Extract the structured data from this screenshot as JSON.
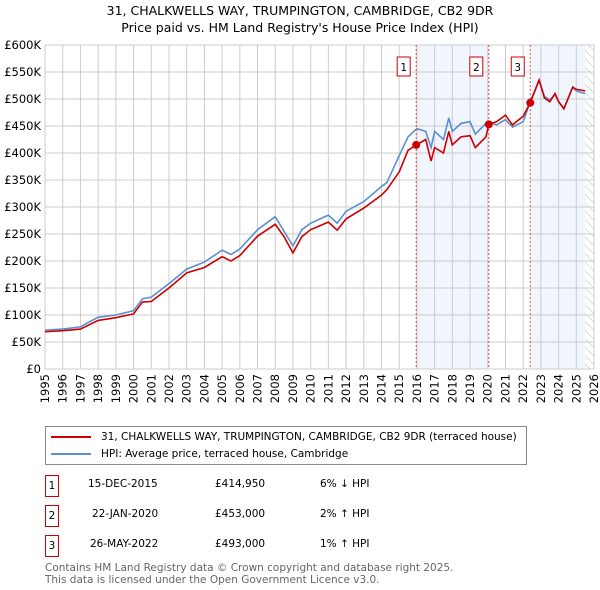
{
  "chart_data": {
    "type": "line",
    "title": "31, CHALKWELLS WAY, TRUMPINGTON, CAMBRIDGE, CB2 9DR",
    "subtitle": "Price paid vs. HM Land Registry's House Price Index (HPI)",
    "xlim": [
      1995,
      2026
    ],
    "ylim": [
      0,
      600000
    ],
    "x_ticks": [
      "1995",
      "1996",
      "1997",
      "1998",
      "1999",
      "2000",
      "2001",
      "2002",
      "2003",
      "2004",
      "2005",
      "2006",
      "2007",
      "2008",
      "2009",
      "2010",
      "2011",
      "2012",
      "2013",
      "2014",
      "2015",
      "2016",
      "2017",
      "2018",
      "2019",
      "2020",
      "2021",
      "2022",
      "2023",
      "2024",
      "2025",
      "2026"
    ],
    "y_ticks": [
      "£0",
      "£50K",
      "£100K",
      "£150K",
      "£200K",
      "£250K",
      "£300K",
      "£350K",
      "£400K",
      "£450K",
      "£500K",
      "£550K",
      "£600K"
    ],
    "grid": true,
    "series": [
      {
        "name": "31, CHALKWELLS WAY, TRUMPINGTON, CAMBRIDGE, CB2 9DR (terraced house)",
        "color": "#cc0000",
        "x": [
          1995,
          1996,
          1997,
          1998,
          1999,
          2000,
          2000.5,
          2001,
          2002,
          2003,
          2004,
          2005,
          2005.5,
          2006,
          2007,
          2008,
          2008.5,
          2009,
          2009.5,
          2010,
          2011,
          2011.5,
          2012,
          2013,
          2014,
          2014.3,
          2015,
          2015.5,
          2015.96,
          2016.5,
          2016.8,
          2017,
          2017.5,
          2017.8,
          2018,
          2018.5,
          2019,
          2019.3,
          2019.9,
          2020.06,
          2020.5,
          2021,
          2021.4,
          2022,
          2022.4,
          2022.6,
          2022.9,
          2023.2,
          2023.5,
          2023.8,
          2024,
          2024.3,
          2024.8,
          2025,
          2025.5
        ],
        "y": [
          69000,
          71000,
          74000,
          90000,
          95000,
          102000,
          124000,
          125000,
          150000,
          178000,
          188000,
          208000,
          200000,
          210000,
          246000,
          268000,
          245000,
          215000,
          245000,
          258000,
          272000,
          257000,
          278000,
          298000,
          322000,
          332000,
          365000,
          405000,
          414950,
          425000,
          385000,
          410000,
          400000,
          440000,
          415000,
          430000,
          432000,
          410000,
          430000,
          453000,
          458000,
          470000,
          452000,
          468000,
          493000,
          510000,
          535000,
          502000,
          495000,
          510000,
          495000,
          482000,
          522000,
          518000,
          515000
        ]
      },
      {
        "name": "HPI: Average price, terraced house, Cambridge",
        "color": "#5b8fd0",
        "x": [
          1995,
          1996,
          1997,
          1998,
          1999,
          2000,
          2000.5,
          2001,
          2002,
          2003,
          2004,
          2005,
          2005.5,
          2006,
          2007,
          2008,
          2008.5,
          2009,
          2009.5,
          2010,
          2011,
          2011.5,
          2012,
          2013,
          2014,
          2014.3,
          2015,
          2015.5,
          2016,
          2016.5,
          2016.8,
          2017,
          2017.5,
          2017.8,
          2018,
          2018.5,
          2019,
          2019.3,
          2020,
          2020.5,
          2021,
          2021.4,
          2022,
          2022.4,
          2022.6,
          2022.9,
          2023.2,
          2023.5,
          2023.8,
          2024,
          2024.3,
          2024.8,
          2025,
          2025.5
        ],
        "y": [
          72000,
          74000,
          78000,
          96000,
          100000,
          108000,
          130000,
          133000,
          158000,
          185000,
          198000,
          220000,
          212000,
          222000,
          258000,
          282000,
          255000,
          228000,
          258000,
          270000,
          285000,
          270000,
          292000,
          310000,
          338000,
          345000,
          395000,
          430000,
          445000,
          440000,
          410000,
          440000,
          425000,
          465000,
          440000,
          455000,
          458000,
          435000,
          458000,
          452000,
          462000,
          448000,
          458000,
          495000,
          510000,
          535000,
          505000,
          498000,
          508000,
          496000,
          482000,
          522000,
          515000,
          510000
        ]
      }
    ],
    "sales": [
      {
        "label": "1",
        "date": "15-DEC-2015",
        "x": 2015.96,
        "price": "£414,950",
        "value": 414950,
        "hpi": "6% ↓ HPI"
      },
      {
        "label": "2",
        "date": "22-JAN-2020",
        "x": 2020.06,
        "price": "£453,000",
        "value": 453000,
        "hpi": "2% ↑ HPI"
      },
      {
        "label": "3",
        "date": "26-MAY-2022",
        "x": 2022.4,
        "price": "£493,000",
        "value": 493000,
        "hpi": "1% ↑ HPI"
      }
    ],
    "shaded_ranges": [
      [
        2015.96,
        2020.06
      ],
      [
        2022.4,
        2025.5
      ]
    ],
    "forecast_hatch_from": 2025.5,
    "legend_position": "below"
  },
  "footer": {
    "line1": "Contains HM Land Registry data © Crown copyright and database right 2025.",
    "line2": "This data is licensed under the Open Government Licence v3.0."
  }
}
